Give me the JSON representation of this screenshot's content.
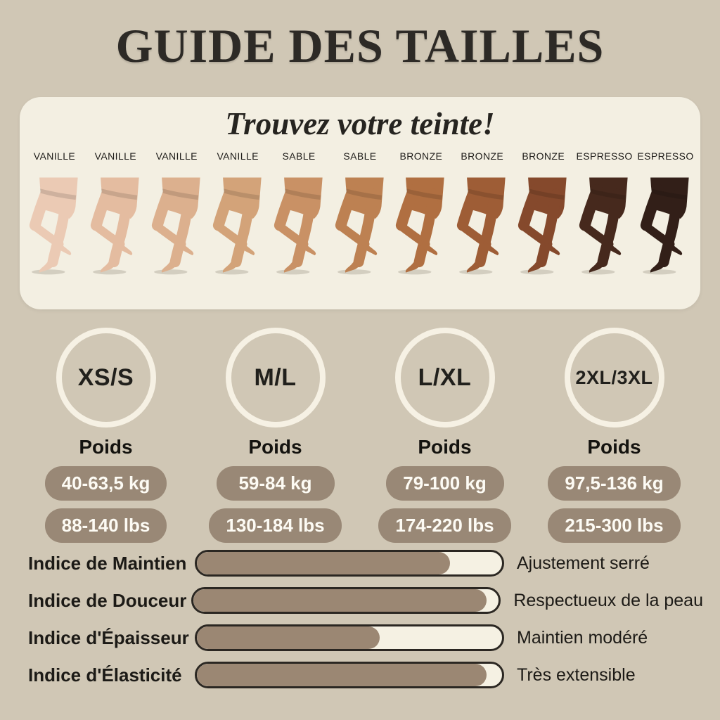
{
  "page": {
    "title": "GUIDE DES TAILLES"
  },
  "shade_panel": {
    "subtitle": "Trouvez votre teinte!",
    "shades": [
      {
        "label": "VANILLE",
        "color": "#ebcab4"
      },
      {
        "label": "VANILLE",
        "color": "#e4bca0"
      },
      {
        "label": "VANILLE",
        "color": "#dcb08e"
      },
      {
        "label": "VANILLE",
        "color": "#d3a379"
      },
      {
        "label": "SABLE",
        "color": "#c99165"
      },
      {
        "label": "SABLE",
        "color": "#bd8152"
      },
      {
        "label": "BRONZE",
        "color": "#b06f41"
      },
      {
        "label": "BRONZE",
        "color": "#9e5d36"
      },
      {
        "label": "BRONZE",
        "color": "#85492c"
      },
      {
        "label": "ESPRESSO",
        "color": "#46291d"
      },
      {
        "label": "ESPRESSO",
        "color": "#321f18"
      }
    ]
  },
  "sizes": [
    {
      "label": "XS/S",
      "weight_title": "Poids",
      "kg": "40-63,5 kg",
      "lbs": "88-140 lbs"
    },
    {
      "label": "M/L",
      "weight_title": "Poids",
      "kg": "59-84 kg",
      "lbs": "130-184 lbs"
    },
    {
      "label": "L/XL",
      "weight_title": "Poids",
      "kg": "79-100 kg",
      "lbs": "174-220 lbs"
    },
    {
      "label": "2XL/3XL",
      "weight_title": "Poids",
      "kg": "97,5-136 kg",
      "lbs": "215-300 lbs"
    }
  ],
  "indices": [
    {
      "label": "Indice de Maintien",
      "value_pct": 83,
      "description": "Ajustement serré"
    },
    {
      "label": "Indice de Douceur",
      "value_pct": 96,
      "description": "Respectueux de la peau"
    },
    {
      "label": "Indice d'Épaisseur",
      "value_pct": 60,
      "description": "Maintien modéré"
    },
    {
      "label": "Indice d'Élasticité",
      "value_pct": 95,
      "description": "Très extensible"
    }
  ],
  "colors": {
    "background": "#d0c7b5",
    "panel": "#f3efe2",
    "pill": "#998876",
    "bar_fill": "#9b8773",
    "bar_track": "#f5f1e3",
    "bar_border": "#2b2722",
    "text_dark": "#1e1c19"
  }
}
